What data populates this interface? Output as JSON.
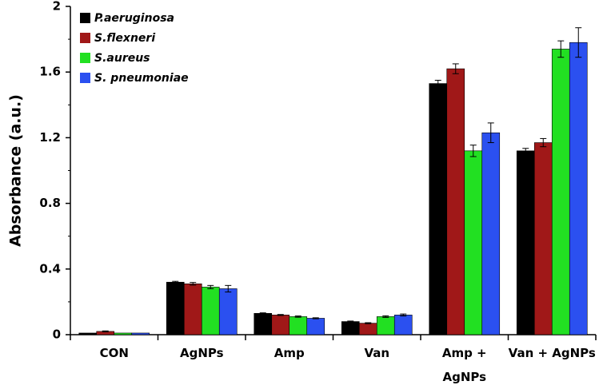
{
  "chart_data": {
    "type": "bar",
    "title": "",
    "xlabel": "",
    "ylabel": "Absorbance (a.u.)",
    "ylim": [
      0,
      2
    ],
    "yticks": [
      "0",
      "0.4",
      "0.8",
      "1.2",
      "1.6",
      "2"
    ],
    "grid": false,
    "legend_position": "top-left",
    "categories": [
      [
        "CON"
      ],
      [
        "AgNPs"
      ],
      [
        "Amp"
      ],
      [
        "Van"
      ],
      [
        "Amp +",
        "AgNPs"
      ],
      [
        "Van + AgNPs"
      ]
    ],
    "series": [
      {
        "name": "P.aeruginosa",
        "color": "#000000",
        "values": [
          0.01,
          0.32,
          0.13,
          0.08,
          1.53,
          1.12
        ],
        "errors": [
          0.0,
          0.005,
          0.003,
          0.003,
          0.02,
          0.015
        ]
      },
      {
        "name": "S.flexneri",
        "color": "#a01818",
        "values": [
          0.02,
          0.31,
          0.12,
          0.07,
          1.62,
          1.17
        ],
        "errors": [
          0.003,
          0.008,
          0.003,
          0.003,
          0.03,
          0.025
        ]
      },
      {
        "name": "S.aureus",
        "color": "#22e022",
        "values": [
          0.01,
          0.29,
          0.11,
          0.11,
          1.12,
          1.74
        ],
        "errors": [
          0.0,
          0.01,
          0.004,
          0.005,
          0.035,
          0.05
        ]
      },
      {
        "name": "S. pneumoniae",
        "color": "#2b50f0",
        "values": [
          0.01,
          0.28,
          0.1,
          0.12,
          1.23,
          1.78
        ],
        "errors": [
          0.0,
          0.02,
          0.003,
          0.006,
          0.06,
          0.09
        ]
      }
    ]
  }
}
